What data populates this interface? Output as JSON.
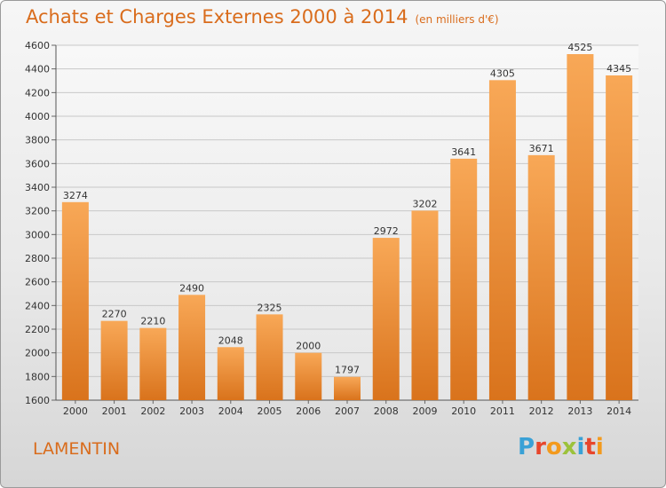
{
  "header": {
    "title": "Achats et Charges Externes 2000 à 2014",
    "unit": "(en milliers d'€)"
  },
  "footer": {
    "commune": "LAMENTIN",
    "logo_letters": [
      "P",
      "r",
      "o",
      "x",
      "i",
      "t",
      "i"
    ],
    "logo_colors": [
      "#3aa1d6",
      "#e7462c",
      "#f39a1d",
      "#9cc23b",
      "#3aa1d6",
      "#e7462c",
      "#f39a1d"
    ]
  },
  "colors": {
    "bar_top": "#f8a857",
    "bar_bottom": "#d9731c",
    "title": "#d96c1c"
  },
  "chart_data": {
    "type": "bar",
    "title": "Achats et Charges Externes 2000 à 2014",
    "subtitle": "(en milliers d'€)",
    "categories": [
      "2000",
      "2001",
      "2002",
      "2003",
      "2004",
      "2005",
      "2006",
      "2007",
      "2008",
      "2009",
      "2010",
      "2011",
      "2012",
      "2013",
      "2014"
    ],
    "values": [
      3274,
      2270,
      2210,
      2490,
      2048,
      2325,
      2000,
      1797,
      2972,
      3202,
      3641,
      4305,
      3671,
      4525,
      4345
    ],
    "ylim": [
      1600,
      4600
    ],
    "yticks": [
      1600,
      1800,
      2000,
      2200,
      2400,
      2600,
      2800,
      3000,
      3200,
      3400,
      3600,
      3800,
      4000,
      4200,
      4400,
      4600
    ],
    "grid": true,
    "legend": "none"
  }
}
